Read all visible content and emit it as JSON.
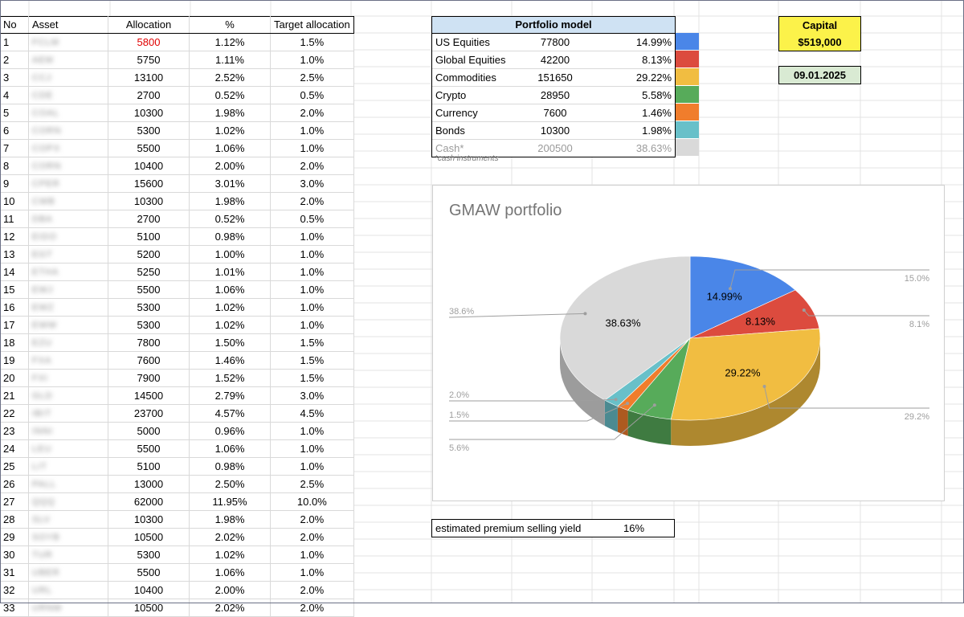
{
  "assets_table": {
    "headers": [
      "No",
      "Asset",
      "Allocation",
      "%",
      "Target allocation"
    ],
    "rows": [
      {
        "no": "1",
        "asset": "FCLM",
        "allocation": "5800",
        "pct": "1.12%",
        "target": "1.5%",
        "highlight": true
      },
      {
        "no": "2",
        "asset": "AEM",
        "allocation": "5750",
        "pct": "1.11%",
        "target": "1.0%"
      },
      {
        "no": "3",
        "asset": "CCJ",
        "allocation": "13100",
        "pct": "2.52%",
        "target": "2.5%"
      },
      {
        "no": "4",
        "asset": "CDE",
        "allocation": "2700",
        "pct": "0.52%",
        "target": "0.5%"
      },
      {
        "no": "5",
        "asset": "COAL",
        "allocation": "10300",
        "pct": "1.98%",
        "target": "2.0%"
      },
      {
        "no": "6",
        "asset": "CORN",
        "allocation": "5300",
        "pct": "1.02%",
        "target": "1.0%"
      },
      {
        "no": "7",
        "asset": "COPX",
        "allocation": "5500",
        "pct": "1.06%",
        "target": "1.0%"
      },
      {
        "no": "8",
        "asset": "CORN",
        "allocation": "10400",
        "pct": "2.00%",
        "target": "2.0%"
      },
      {
        "no": "9",
        "asset": "CPER",
        "allocation": "15600",
        "pct": "3.01%",
        "target": "3.0%"
      },
      {
        "no": "10",
        "asset": "CWB",
        "allocation": "10300",
        "pct": "1.98%",
        "target": "2.0%"
      },
      {
        "no": "11",
        "asset": "DBA",
        "allocation": "2700",
        "pct": "0.52%",
        "target": "0.5%"
      },
      {
        "no": "12",
        "asset": "EIDO",
        "allocation": "5100",
        "pct": "0.98%",
        "target": "1.0%"
      },
      {
        "no": "13",
        "asset": "EGT",
        "allocation": "5200",
        "pct": "1.00%",
        "target": "1.0%"
      },
      {
        "no": "14",
        "asset": "ETHA",
        "allocation": "5250",
        "pct": "1.01%",
        "target": "1.0%"
      },
      {
        "no": "15",
        "asset": "EWJ",
        "allocation": "5500",
        "pct": "1.06%",
        "target": "1.0%"
      },
      {
        "no": "16",
        "asset": "EWZ",
        "allocation": "5300",
        "pct": "1.02%",
        "target": "1.0%"
      },
      {
        "no": "17",
        "asset": "EWW",
        "allocation": "5300",
        "pct": "1.02%",
        "target": "1.0%"
      },
      {
        "no": "18",
        "asset": "EZU",
        "allocation": "7800",
        "pct": "1.50%",
        "target": "1.5%"
      },
      {
        "no": "19",
        "asset": "FXA",
        "allocation": "7600",
        "pct": "1.46%",
        "target": "1.5%"
      },
      {
        "no": "20",
        "asset": "FXI",
        "allocation": "7900",
        "pct": "1.52%",
        "target": "1.5%"
      },
      {
        "no": "21",
        "asset": "GLD",
        "allocation": "14500",
        "pct": "2.79%",
        "target": "3.0%"
      },
      {
        "no": "22",
        "asset": "IBIT",
        "allocation": "23700",
        "pct": "4.57%",
        "target": "4.5%"
      },
      {
        "no": "23",
        "asset": "INNI",
        "allocation": "5000",
        "pct": "0.96%",
        "target": "1.0%"
      },
      {
        "no": "24",
        "asset": "LEU",
        "allocation": "5500",
        "pct": "1.06%",
        "target": "1.0%"
      },
      {
        "no": "25",
        "asset": "LIT",
        "allocation": "5100",
        "pct": "0.98%",
        "target": "1.0%"
      },
      {
        "no": "26",
        "asset": "PALL",
        "allocation": "13000",
        "pct": "2.50%",
        "target": "2.5%"
      },
      {
        "no": "27",
        "asset": "QQQ",
        "allocation": "62000",
        "pct": "11.95%",
        "target": "10.0%"
      },
      {
        "no": "28",
        "asset": "SLV",
        "allocation": "10300",
        "pct": "1.98%",
        "target": "2.0%"
      },
      {
        "no": "29",
        "asset": "SOYB",
        "allocation": "10500",
        "pct": "2.02%",
        "target": "2.0%"
      },
      {
        "no": "30",
        "asset": "TUR",
        "allocation": "5300",
        "pct": "1.02%",
        "target": "1.0%"
      },
      {
        "no": "31",
        "asset": "UBER",
        "allocation": "5500",
        "pct": "1.06%",
        "target": "1.0%"
      },
      {
        "no": "32",
        "asset": "URL",
        "allocation": "10400",
        "pct": "2.00%",
        "target": "2.0%"
      },
      {
        "no": "33",
        "asset": "URNM",
        "allocation": "10500",
        "pct": "2.02%",
        "target": "2.0%"
      }
    ]
  },
  "portfolio_model": {
    "title": "Portfolio model",
    "rows": [
      {
        "name": "US Equities",
        "amount": "77800",
        "pct": "14.99%",
        "color": "#4a86e8"
      },
      {
        "name": "Global Equities",
        "amount": "42200",
        "pct": "8.13%",
        "color": "#dc4b3e"
      },
      {
        "name": "Commodities",
        "amount": "151650",
        "pct": "29.22%",
        "color": "#f1bd41"
      },
      {
        "name": "Crypto",
        "amount": "28950",
        "pct": "5.58%",
        "color": "#57ab5a"
      },
      {
        "name": "Currency",
        "amount": "7600",
        "pct": "1.46%",
        "color": "#f07d2c"
      },
      {
        "name": "Bonds",
        "amount": "10300",
        "pct": "1.98%",
        "color": "#68c0c9"
      },
      {
        "name": "Cash*",
        "amount": "200500",
        "pct": "38.63%",
        "color": "#d9d9d9"
      }
    ],
    "footnote": "*cash instruments"
  },
  "capital": {
    "label": "Capital",
    "value": "$519,000"
  },
  "date": "09.01.2025",
  "yield_row": {
    "label": "estimated premium selling yield",
    "value": "16%"
  },
  "chart_data": {
    "type": "pie",
    "title": "GMAW portfolio",
    "categories": [
      "US Equities",
      "Global Equities",
      "Commodities",
      "Crypto",
      "Currency",
      "Bonds",
      "Cash*"
    ],
    "values": [
      14.99,
      8.13,
      29.22,
      5.58,
      1.46,
      1.98,
      38.63
    ],
    "inner_labels": [
      "14.99%",
      "8.13%",
      "29.22%",
      "",
      "",
      "",
      "38.63%"
    ],
    "outer_labels": [
      "15.0%",
      "8.1%",
      "29.2%",
      "5.6%",
      "1.5%",
      "2.0%",
      "38.6%"
    ],
    "colors": [
      "#4a86e8",
      "#dc4b3e",
      "#f1bd41",
      "#57ab5a",
      "#f07d2c",
      "#68c0c9",
      "#d9d9d9"
    ],
    "style": "3d",
    "legend": "none"
  }
}
